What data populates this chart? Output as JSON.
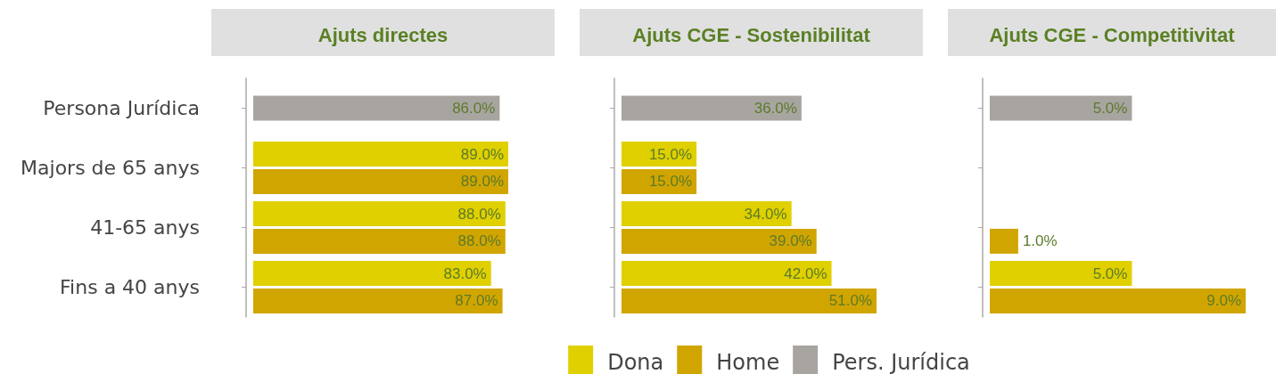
{
  "chart_data": [
    {
      "type": "bar",
      "orientation": "horizontal",
      "title": "Ajuts directes",
      "categories": [
        "Persona Jurídica",
        "Majors de 65 anys",
        "41-65 anys",
        "Fins a 40 anys"
      ],
      "series": [
        {
          "color": "#e0d000",
          "values": [
            null,
            89,
            88,
            83
          ],
          "value_labels": [
            null,
            "89.0%",
            "88.0%",
            "83.0%"
          ]
        },
        {
          "color": "#d1a500",
          "values": [
            null,
            89,
            88,
            87
          ],
          "value_labels": [
            null,
            "89.0%",
            "88.0%",
            "87.0%"
          ]
        },
        {
          "color": "#a8a5a1",
          "values": [
            86,
            null,
            null,
            null
          ],
          "value_labels": [
            "86.0%",
            null,
            null,
            null
          ]
        }
      ],
      "tick_labels": "y",
      "legend": false
    },
    {
      "type": "bar",
      "orientation": "horizontal",
      "title": "Ajuts CGE - Sostenibilitat",
      "categories": [
        "Persona Jurídica",
        "Majors de 65 anys",
        "41-65 anys",
        "Fins a 40 anys"
      ],
      "series": [
        {
          "name": "Dona",
          "color": "#e0d000",
          "values": [
            null,
            15,
            34,
            42
          ],
          "value_labels": [
            null,
            "15.0%",
            "34.0%",
            "42.0%"
          ]
        },
        {
          "name": "Home",
          "color": "#d1a500",
          "values": [
            null,
            15,
            39,
            51
          ],
          "value_labels": [
            null,
            "15.0%",
            "39.0%",
            "51.0%"
          ]
        },
        {
          "name": "Pers. Jurídica",
          "color": "#a8a5a1",
          "values": [
            36,
            null,
            null,
            null
          ],
          "value_labels": [
            "36.0%",
            null,
            null,
            null
          ]
        }
      ],
      "tick_labels": false,
      "legend": "bottom"
    },
    {
      "type": "bar",
      "orientation": "horizontal",
      "title": "Ajuts CGE - Competitivitat",
      "categories": [
        "Persona Jurídica",
        "Majors de 65 anys",
        "41-65 anys",
        "Fins a 40 anys"
      ],
      "series": [
        {
          "color": "#e0d000",
          "values": [
            null,
            null,
            null,
            5
          ],
          "value_labels": [
            null,
            null,
            null,
            "5.0%"
          ]
        },
        {
          "color": "#d1a500",
          "values": [
            null,
            null,
            1,
            9
          ],
          "value_labels": [
            null,
            null,
            "1.0%",
            "9.0%"
          ]
        },
        {
          "color": "#a8a5a1",
          "values": [
            5,
            null,
            null,
            null
          ],
          "value_labels": [
            "5.0%",
            null,
            null,
            null
          ]
        }
      ],
      "tick_labels": false,
      "legend": false
    }
  ]
}
